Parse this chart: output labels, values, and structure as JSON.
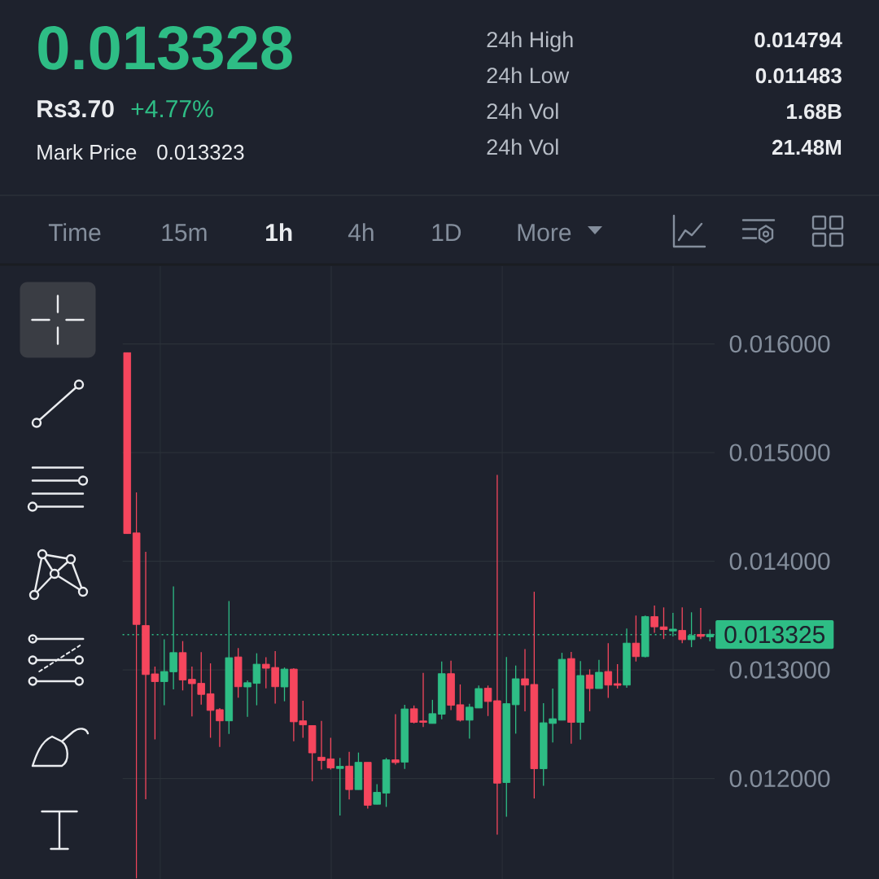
{
  "chart_data": {
    "type": "candlestick",
    "categories": [
      null,
      null,
      null,
      null,
      null,
      null,
      null,
      null,
      null,
      null,
      null,
      null,
      null,
      null,
      null,
      null,
      null,
      null,
      null,
      null,
      null,
      null,
      null,
      null,
      null,
      null,
      null,
      null,
      null,
      null,
      null,
      null,
      null,
      null,
      null,
      null,
      null,
      null,
      null,
      null,
      null,
      null,
      null,
      null,
      null,
      null,
      null,
      null,
      null,
      null,
      null,
      null,
      null,
      null,
      null,
      null,
      null,
      null,
      null,
      null,
      null,
      null,
      null,
      null
    ],
    "ohlc": [
      [
        0.01592,
        0.01592,
        0.014254,
        0.014254
      ],
      [
        0.01426,
        0.014633,
        0.01108,
        0.013418
      ],
      [
        0.013408,
        0.014086,
        0.01181,
        0.012957
      ],
      [
        0.012963,
        0.01303,
        0.01236,
        0.012892
      ],
      [
        0.012892,
        0.013281,
        0.012674,
        0.012985
      ],
      [
        0.012982,
        0.013769,
        0.012821,
        0.013159
      ],
      [
        0.013159,
        0.013265,
        0.012811,
        0.012907
      ],
      [
        0.012913,
        0.01303,
        0.012572,
        0.012873
      ],
      [
        0.012876,
        0.013164,
        0.012681,
        0.012774
      ],
      [
        0.01278,
        0.01306,
        0.012375,
        0.012627
      ],
      [
        0.012634,
        0.012649,
        0.012291,
        0.012531
      ],
      [
        0.012531,
        0.013634,
        0.01241,
        0.013112
      ],
      [
        0.013119,
        0.013201,
        0.012743,
        0.012845
      ],
      [
        0.012843,
        0.012903,
        0.012567,
        0.012882
      ],
      [
        0.012876,
        0.013153,
        0.012674,
        0.013052
      ],
      [
        0.013052,
        0.013116,
        0.01283,
        0.013015
      ],
      [
        0.013022,
        0.013172,
        0.01269,
        0.012845
      ],
      [
        0.012843,
        0.013022,
        0.012711,
        0.013007
      ],
      [
        0.013007,
        0.013015,
        0.012343,
        0.012522
      ],
      [
        0.012531,
        0.012716,
        0.012375,
        0.012494
      ],
      [
        0.012487,
        0.012487,
        0.011975,
        0.012236
      ],
      [
        0.012196,
        0.01253,
        0.012082,
        0.012166
      ],
      [
        0.012181,
        0.012375,
        0.012082,
        0.012097
      ],
      [
        0.012092,
        0.012189,
        0.011659,
        0.012112
      ],
      [
        0.012114,
        0.012246,
        0.011808,
        0.011898
      ],
      [
        0.011898,
        0.012239,
        0.011898,
        0.012149
      ],
      [
        0.012149,
        0.012149,
        0.011724,
        0.011754
      ],
      [
        0.011763,
        0.011948,
        0.011763,
        0.011873
      ],
      [
        0.011866,
        0.012189,
        0.011739,
        0.012172
      ],
      [
        0.012172,
        0.012592,
        0.012127,
        0.012147
      ],
      [
        0.012151,
        0.012679,
        0.012089,
        0.01264
      ],
      [
        0.012642,
        0.012672,
        0.012507,
        0.012517
      ],
      [
        0.01253,
        0.012972,
        0.012475,
        0.012517
      ],
      [
        0.012507,
        0.012724,
        0.012507,
        0.012597
      ],
      [
        0.012592,
        0.013077,
        0.012545,
        0.012965
      ],
      [
        0.012965,
        0.013084,
        0.012629,
        0.012674
      ],
      [
        0.012679,
        0.012866,
        0.012525,
        0.012537
      ],
      [
        0.012537,
        0.012687,
        0.012368,
        0.012657
      ],
      [
        0.012649,
        0.012856,
        0.012649,
        0.012828
      ],
      [
        0.012831,
        0.012856,
        0.012575,
        0.012709
      ],
      [
        0.012716,
        0.014794,
        0.011483,
        0.011957
      ],
      [
        0.011963,
        0.013119,
        0.011649,
        0.012689
      ],
      [
        0.012679,
        0.01304,
        0.012413,
        0.012918
      ],
      [
        0.012918,
        0.013192,
        0.012619,
        0.01286
      ],
      [
        0.012866,
        0.013719,
        0.011816,
        0.01209
      ],
      [
        0.01209,
        0.012694,
        0.011933,
        0.012513
      ],
      [
        0.012507,
        0.012828,
        0.012331,
        0.01255
      ],
      [
        0.012537,
        0.013157,
        0.012537,
        0.013097
      ],
      [
        0.013104,
        0.013166,
        0.012321,
        0.012517
      ],
      [
        0.012517,
        0.01308,
        0.012358,
        0.012948
      ],
      [
        0.012953,
        0.013005,
        0.012619,
        0.012828
      ],
      [
        0.012828,
        0.013092,
        0.012828,
        0.012978
      ],
      [
        0.012985,
        0.013246,
        0.012741,
        0.01286
      ],
      [
        0.012873,
        0.013052,
        0.012828,
        0.012858
      ],
      [
        0.01286,
        0.013381,
        0.012836,
        0.013246
      ],
      [
        0.013246,
        0.0135,
        0.013077,
        0.013122
      ],
      [
        0.013122,
        0.0135,
        0.013114,
        0.01349
      ],
      [
        0.01349,
        0.013592,
        0.013341,
        0.013396
      ],
      [
        0.013396,
        0.013575,
        0.013284,
        0.013371
      ],
      [
        0.013358,
        0.013525,
        0.013308,
        0.013375
      ],
      [
        0.013363,
        0.013575,
        0.013246,
        0.013278
      ],
      [
        0.013278,
        0.01353,
        0.013209,
        0.013316
      ],
      [
        0.013326,
        0.013569,
        0.013284,
        0.013308
      ],
      [
        0.013304,
        0.013371,
        0.013263,
        0.013328
      ]
    ],
    "colors": [
      "#f6465d",
      "#f6465d",
      "#f6465d",
      "#f6465d",
      "#2ebd85",
      "#2ebd85",
      "#f6465d",
      "#f6465d",
      "#f6465d",
      "#f6465d",
      "#f6465d",
      "#2ebd85",
      "#f6465d",
      "#2ebd85",
      "#2ebd85",
      "#f6465d",
      "#f6465d",
      "#2ebd85",
      "#f6465d",
      "#f6465d",
      "#f6465d",
      "#f6465d",
      "#f6465d",
      "#2ebd85",
      "#f6465d",
      "#2ebd85",
      "#f6465d",
      "#2ebd85",
      "#2ebd85",
      "#f6465d",
      "#2ebd85",
      "#f6465d",
      "#f6465d",
      "#2ebd85",
      "#2ebd85",
      "#f6465d",
      "#f6465d",
      "#2ebd85",
      "#2ebd85",
      "#f6465d",
      "#f6465d",
      "#2ebd85",
      "#2ebd85",
      "#f6465d",
      "#f6465d",
      "#2ebd85",
      "#2ebd85",
      "#2ebd85",
      "#f6465d",
      "#2ebd85",
      "#f6465d",
      "#2ebd85",
      "#f6465d",
      "#f6465d",
      "#2ebd85",
      "#f6465d",
      "#2ebd85",
      "#f6465d",
      "#f6465d",
      "#2ebd85",
      "#f6465d",
      "#2ebd85",
      "#f6465d",
      "#2ebd85"
    ],
    "ylim": [
      0.011075,
      0.016716
    ],
    "yticks": [
      {
        "value": 0.012,
        "label": "0.012000"
      },
      {
        "value": 0.013,
        "label": "0.013000"
      },
      {
        "value": 0.014,
        "label": "0.014000"
      },
      {
        "value": 0.015,
        "label": "0.015000"
      },
      {
        "value": 0.016,
        "label": "0.016000"
      }
    ],
    "grid": "y",
    "tick_labels": "y",
    "ref_lines": [
      {
        "axis": "y",
        "value": 0.013325,
        "label": "0.013325",
        "color": "#2ebd85",
        "line_style": "dotted"
      }
    ],
    "annotations": [
      "0.013328",
      "Rs3.70",
      "+4.77%",
      "Mark Price",
      "0.013323",
      "24h High",
      "0.014794",
      "24h Low",
      "0.011483",
      "24h Vol",
      "1.68B",
      "24h Vol",
      "21.48M",
      "Time",
      "15m",
      "1h",
      "4h",
      "1D",
      "More"
    ]
  }
}
